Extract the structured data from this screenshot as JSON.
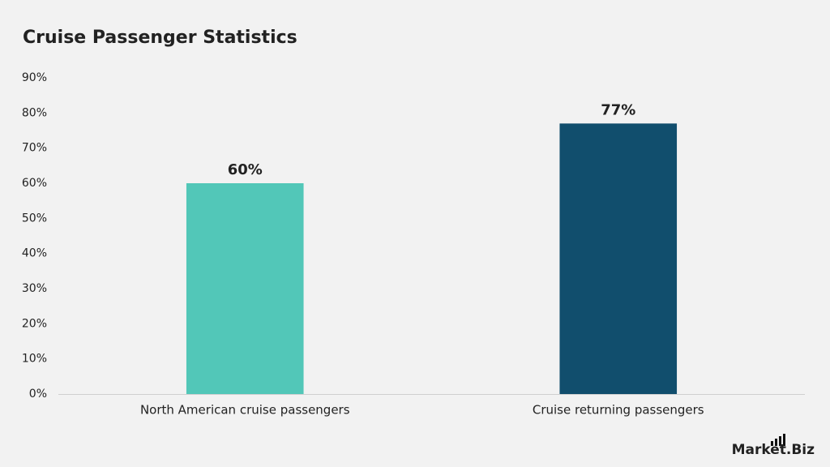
{
  "chart_data": {
    "type": "bar",
    "title": "Cruise Passenger Statistics",
    "categories": [
      "North American cruise passengers",
      "Cruise returning passengers"
    ],
    "values": [
      60,
      77
    ],
    "value_labels": [
      "60%",
      "77%"
    ],
    "colors": [
      "#52c7b8",
      "#114e6d"
    ],
    "ylim": [
      0,
      90
    ],
    "yticks": [
      {
        "value": 0,
        "label": "0%"
      },
      {
        "value": 10,
        "label": "10%"
      },
      {
        "value": 20,
        "label": "20%"
      },
      {
        "value": 30,
        "label": "30%"
      },
      {
        "value": 40,
        "label": "40%"
      },
      {
        "value": 50,
        "label": "50%"
      },
      {
        "value": 60,
        "label": "60%"
      },
      {
        "value": 70,
        "label": "70%"
      },
      {
        "value": 80,
        "label": "80%"
      },
      {
        "value": 90,
        "label": "90%"
      }
    ],
    "grid": false,
    "watermark": "Market.Biz"
  }
}
